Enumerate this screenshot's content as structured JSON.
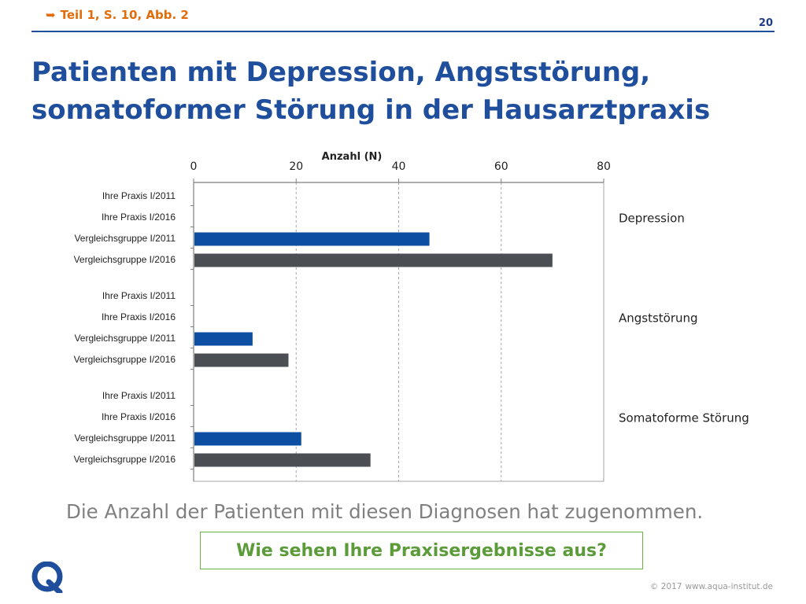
{
  "header": {
    "reference": "Teil 1, S. 10, Abb. 2",
    "page_number": "20",
    "title_line1": "Patienten mit Depression, Angststörung,",
    "title_line2": "somatoformer Störung in der Hausarztpraxis"
  },
  "chart_data": {
    "type": "bar",
    "orientation": "horizontal",
    "xlabel": "Anzahl (N)",
    "xlim": [
      0,
      80
    ],
    "xticks": [
      0,
      20,
      40,
      60,
      80
    ],
    "grid": "vertical dashed",
    "groups": [
      {
        "name": "Depression",
        "bars": [
          {
            "label": "Ihre Praxis I/2011",
            "value": 0,
            "color": "#0b4ea2"
          },
          {
            "label": "Ihre Praxis I/2016",
            "value": 0,
            "color": "#4b4f54"
          },
          {
            "label": "Vergleichsgruppe I/2011",
            "value": 46,
            "color": "#0b4ea2"
          },
          {
            "label": "Vergleichsgruppe I/2016",
            "value": 70,
            "color": "#4b4f54"
          }
        ]
      },
      {
        "name": "Angststörung",
        "bars": [
          {
            "label": "Ihre Praxis I/2011",
            "value": 0,
            "color": "#0b4ea2"
          },
          {
            "label": "Ihre Praxis I/2016",
            "value": 0,
            "color": "#4b4f54"
          },
          {
            "label": "Vergleichsgruppe I/2011",
            "value": 11.5,
            "color": "#0b4ea2"
          },
          {
            "label": "Vergleichsgruppe I/2016",
            "value": 18.5,
            "color": "#4b4f54"
          }
        ]
      },
      {
        "name": "Somatoforme Störung",
        "bars": [
          {
            "label": "Ihre Praxis I/2011",
            "value": 0,
            "color": "#0b4ea2"
          },
          {
            "label": "Ihre Praxis I/2016",
            "value": 0,
            "color": "#4b4f54"
          },
          {
            "label": "Vergleichsgruppe I/2011",
            "value": 21,
            "color": "#0b4ea2"
          },
          {
            "label": "Vergleichsgruppe I/2016",
            "value": 34.5,
            "color": "#4b4f54"
          }
        ]
      }
    ]
  },
  "footer": {
    "caption": "Die Anzahl der Patienten mit diesen Diagnosen hat zugenommen.",
    "call_to_action": "Wie sehen Ihre Praxisergebnisse aus?",
    "copyright_symbol": "© 2017",
    "copyright_url": "www.aqua-institut.de",
    "logo_letter": "Q"
  },
  "colors": {
    "brand_blue": "#1f4e9c",
    "accent_orange": "#e36c09",
    "cta_green": "#5b9b3a",
    "bar_blue": "#0b4ea2",
    "bar_gray": "#4b4f54"
  },
  "icons": {
    "reference_arrow": "right-arrow-icon",
    "logo": "aqua-q-logo-icon"
  }
}
